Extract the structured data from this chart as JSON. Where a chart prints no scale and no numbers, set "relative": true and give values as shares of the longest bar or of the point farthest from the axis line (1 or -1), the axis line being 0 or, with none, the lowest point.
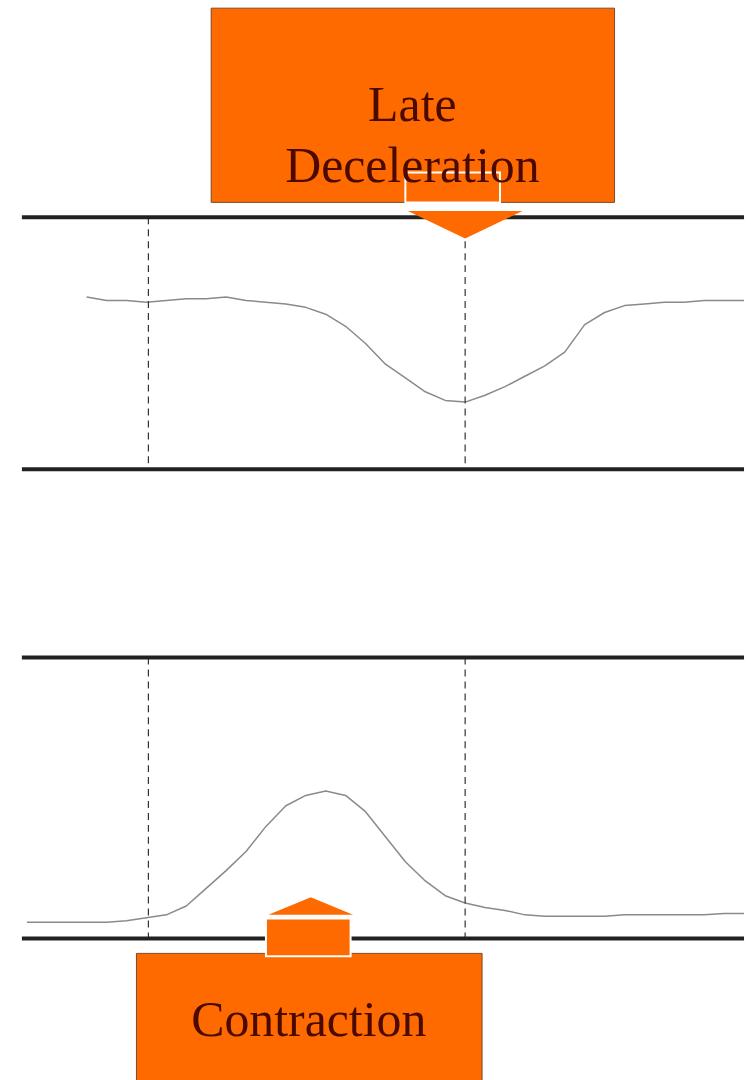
{
  "chart_data": [
    {
      "type": "line",
      "relative": true,
      "categories": [
        null,
        null,
        null,
        null,
        null,
        null,
        null,
        null,
        null,
        null,
        null,
        null,
        null,
        null,
        null,
        null,
        null,
        null,
        null,
        null,
        null,
        null,
        null,
        null,
        null,
        null,
        null,
        null,
        null,
        null,
        null,
        null,
        null,
        null,
        null,
        null,
        null
      ],
      "series": [
        {
          "color": "#8a8a8a",
          "values": [
            null,
            null,
            null,
            1.0,
            0.98,
            0.98,
            0.97,
            0.98,
            0.99,
            0.99,
            1.0,
            0.98,
            0.97,
            0.96,
            0.94,
            0.9,
            0.83,
            0.73,
            0.61,
            0.53,
            0.45,
            0.4,
            0.39,
            0.43,
            0.48,
            0.54,
            0.6,
            0.68,
            0.84,
            0.91,
            0.95,
            0.96,
            0.97,
            0.97,
            0.98,
            0.98,
            0.98
          ]
        }
      ],
      "annotations": [
        "Late Deceleration"
      ]
    },
    {
      "type": "line",
      "relative": true,
      "categories": [
        null,
        null,
        null,
        null,
        null,
        null,
        null,
        null,
        null,
        null,
        null,
        null,
        null,
        null,
        null,
        null,
        null,
        null,
        null,
        null,
        null,
        null,
        null,
        null,
        null,
        null,
        null,
        null,
        null,
        null,
        null,
        null,
        null,
        null,
        null,
        null,
        null
      ],
      "series": [
        {
          "color": "#8a8a8a",
          "values": [
            0.11,
            0.11,
            0.11,
            0.11,
            0.11,
            0.12,
            0.14,
            0.16,
            0.22,
            0.34,
            0.46,
            0.59,
            0.76,
            0.9,
            0.97,
            1.0,
            0.97,
            0.86,
            0.69,
            0.52,
            0.39,
            0.29,
            0.24,
            0.21,
            0.19,
            0.16,
            0.15,
            0.15,
            0.15,
            0.15,
            0.16,
            0.16,
            0.16,
            0.16,
            0.16,
            0.17,
            0.17
          ]
        }
      ],
      "annotations": [
        "Contraction"
      ]
    }
  ]
}
